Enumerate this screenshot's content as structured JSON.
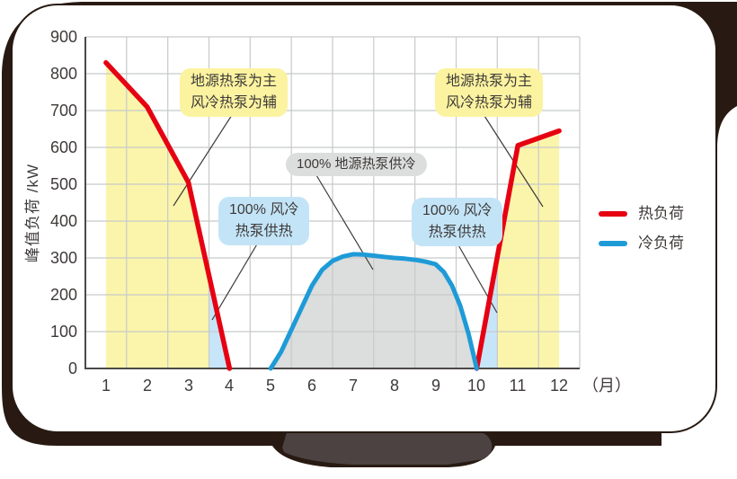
{
  "chart_data": {
    "type": "area",
    "y_axis_title": "峰值负荷 /kW",
    "x_axis_unit": "（月）",
    "y_ticks": [
      "900",
      "800",
      "700",
      "600",
      "500",
      "400",
      "300",
      "200",
      "100",
      "0"
    ],
    "x_ticks": [
      "1",
      "2",
      "3",
      "4",
      "5",
      "6",
      "7",
      "8",
      "9",
      "10",
      "11",
      "12"
    ],
    "ylim": [
      0,
      900
    ],
    "x_months": [
      1,
      12
    ],
    "grid": true,
    "legend_position": "right",
    "series": [
      {
        "name": "热负荷",
        "color": "#e60012",
        "unit": "kW",
        "segments": [
          [
            [
              1,
              830
            ],
            [
              2,
              710
            ],
            [
              3,
              505
            ],
            [
              4,
              0
            ]
          ],
          [
            [
              10,
              0
            ],
            [
              11,
              605
            ],
            [
              12,
              645
            ]
          ]
        ]
      },
      {
        "name": "冷负荷",
        "color": "#1e9bd7",
        "unit": "kW",
        "segments": [
          [
            [
              5,
              0
            ],
            [
              5.25,
              45
            ],
            [
              5.5,
              105
            ],
            [
              5.75,
              165
            ],
            [
              6,
              225
            ],
            [
              6.25,
              268
            ],
            [
              6.5,
              292
            ],
            [
              6.75,
              304
            ],
            [
              7,
              310
            ],
            [
              7.25,
              309
            ],
            [
              7.5,
              306
            ],
            [
              7.75,
              303
            ],
            [
              8,
              300
            ],
            [
              8.25,
              298
            ],
            [
              8.5,
              295
            ],
            [
              8.75,
              290
            ],
            [
              9,
              283
            ],
            [
              9.2,
              262
            ],
            [
              9.4,
              225
            ],
            [
              9.6,
              170
            ],
            [
              9.8,
              95
            ],
            [
              10,
              0
            ]
          ]
        ]
      }
    ],
    "regions": [
      {
        "name": "heating-ground-source-left",
        "fill": "#fbf5ab",
        "points": [
          [
            1,
            0
          ],
          [
            1,
            830
          ],
          [
            2,
            710
          ],
          [
            3,
            505
          ],
          [
            3.5,
            250
          ],
          [
            3.5,
            0
          ]
        ]
      },
      {
        "name": "heating-air-source-left",
        "fill": "#c7e5f8",
        "points": [
          [
            3.5,
            0
          ],
          [
            3.5,
            250
          ],
          [
            4,
            0
          ]
        ]
      },
      {
        "name": "cooling-ground-source",
        "fill": "#dcdddd",
        "points": [
          [
            5,
            0
          ],
          [
            5.25,
            45
          ],
          [
            5.5,
            105
          ],
          [
            5.75,
            165
          ],
          [
            6,
            225
          ],
          [
            6.25,
            268
          ],
          [
            6.5,
            292
          ],
          [
            6.75,
            304
          ],
          [
            7,
            310
          ],
          [
            7.25,
            309
          ],
          [
            7.5,
            306
          ],
          [
            7.75,
            303
          ],
          [
            8,
            300
          ],
          [
            8.25,
            298
          ],
          [
            8.5,
            295
          ],
          [
            8.75,
            290
          ],
          [
            9,
            283
          ],
          [
            9.2,
            262
          ],
          [
            9.4,
            225
          ],
          [
            9.6,
            170
          ],
          [
            9.8,
            95
          ],
          [
            10,
            0
          ]
        ]
      },
      {
        "name": "heating-air-source-right",
        "fill": "#c7e5f8",
        "points": [
          [
            10,
            0
          ],
          [
            10.5,
            300
          ],
          [
            10.5,
            0
          ]
        ]
      },
      {
        "name": "heating-ground-source-right",
        "fill": "#fbf5ab",
        "points": [
          [
            10.5,
            0
          ],
          [
            10.5,
            300
          ],
          [
            11,
            605
          ],
          [
            12,
            645
          ],
          [
            12,
            0
          ]
        ]
      }
    ],
    "legend": [
      {
        "label": "热负荷",
        "color": "#e60012"
      },
      {
        "label": "冷负荷",
        "color": "#1e9bd7"
      }
    ],
    "annotations": [
      {
        "line1": "地源热泵为主",
        "line2": "风冷热泵为辅",
        "style": "yellow"
      },
      {
        "line1": "地源热泵为主",
        "line2": "风冷热泵为辅",
        "style": "yellow"
      },
      {
        "line1": "100% 地源热泵供冷",
        "style": "gray"
      },
      {
        "line1": "100% 风冷",
        "line2": "热泵供热",
        "style": "blue"
      },
      {
        "line1": "100% 风冷",
        "line2": "热泵供热",
        "style": "blue"
      }
    ]
  }
}
